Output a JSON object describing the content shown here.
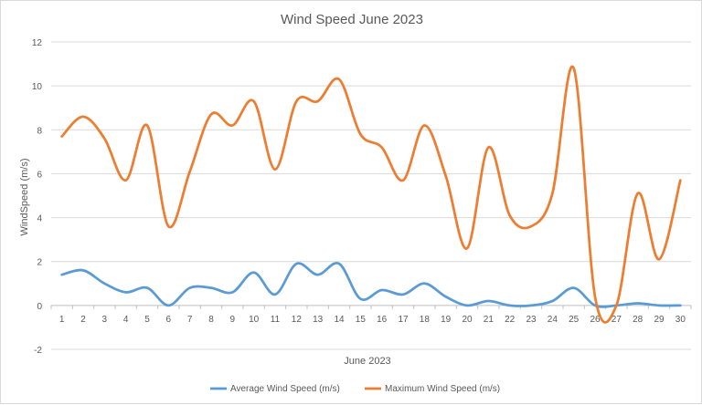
{
  "chart_data": {
    "type": "line",
    "title": "Wind Speed June 2023",
    "xlabel": "June 2023",
    "ylabel": "WindSpeed (m/s)",
    "ylim": [
      -2,
      12
    ],
    "yticks": [
      -2,
      0,
      2,
      4,
      6,
      8,
      10,
      12
    ],
    "smooth": true,
    "grid": true,
    "legend_position": "bottom",
    "x": [
      1,
      2,
      3,
      4,
      5,
      6,
      7,
      8,
      9,
      10,
      11,
      12,
      13,
      14,
      15,
      16,
      17,
      18,
      19,
      20,
      21,
      22,
      23,
      24,
      25,
      26,
      27,
      28,
      29,
      30
    ],
    "series": [
      {
        "name": "Average Wind Speed (m/s)",
        "color": "#5b9bd5",
        "values": [
          1.4,
          1.6,
          1.0,
          0.6,
          0.8,
          0.0,
          0.8,
          0.8,
          0.6,
          1.5,
          0.5,
          1.9,
          1.4,
          1.9,
          0.3,
          0.7,
          0.5,
          1.0,
          0.4,
          0.0,
          0.2,
          0.0,
          0.0,
          0.2,
          0.8,
          0.0,
          0.0,
          0.1,
          0.0,
          0.0
        ]
      },
      {
        "name": "Maximum Wind Speed (m/s)",
        "color": "#ed7d31",
        "values": [
          7.7,
          8.6,
          7.6,
          5.7,
          8.2,
          3.6,
          6.1,
          8.7,
          8.2,
          9.3,
          6.2,
          9.3,
          9.3,
          10.3,
          7.8,
          7.2,
          5.7,
          8.2,
          5.9,
          2.6,
          7.2,
          4.1,
          3.6,
          5.1,
          10.8,
          0.4,
          0.0,
          5.1,
          2.1,
          5.7
        ]
      }
    ]
  }
}
